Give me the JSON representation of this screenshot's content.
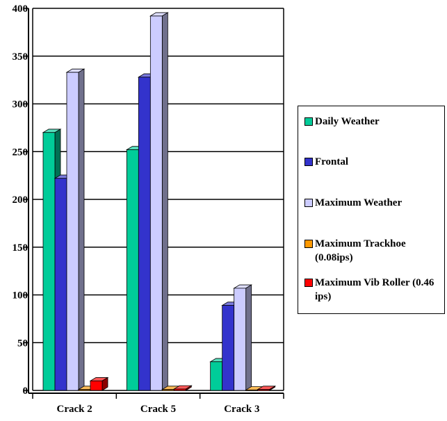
{
  "chart_data": {
    "type": "bar",
    "categories": [
      "Crack 2",
      "Crack 5",
      "Crack 3"
    ],
    "series": [
      {
        "name": "Daily Weather",
        "values": [
          270,
          252,
          30
        ],
        "color": "#00cc99"
      },
      {
        "name": "Frontal",
        "values": [
          222,
          328,
          89
        ],
        "color": "#3333cc"
      },
      {
        "name": "Maximum Weather",
        "values": [
          333,
          392,
          107
        ],
        "color": "#ccccff"
      },
      {
        "name": "Maximum Trackhoe (0.08ips)",
        "values": [
          1,
          1,
          0.5
        ],
        "color": "#ff9900"
      },
      {
        "name": "Maximum Vib Roller (0.46 ips)",
        "values": [
          10,
          1.5,
          1
        ],
        "color": "#ff0000"
      }
    ],
    "ylim": [
      0,
      400
    ],
    "yticks": [
      0,
      50,
      100,
      150,
      200,
      250,
      300,
      350,
      400
    ],
    "grid": true,
    "legend_position": "right"
  }
}
